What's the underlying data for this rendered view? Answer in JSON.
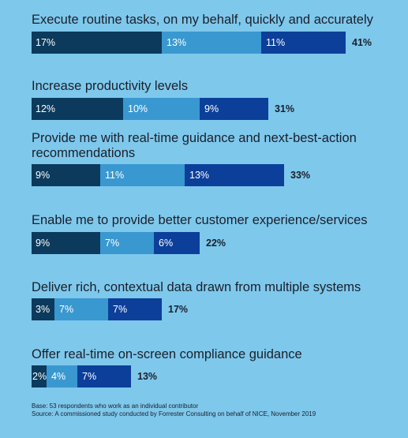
{
  "chart_data": {
    "type": "bar",
    "orientation": "horizontal",
    "stacked": true,
    "categories": [
      "Execute routine tasks, on my behalf, quickly and accurately",
      "Increase productivity levels",
      "Provide me with real-time guidance and next-best-action recommendations",
      "Enable me to provide better customer experience/services",
      "Deliver rich, contextual data drawn from multiple systems",
      "Offer real-time on-screen compliance guidance"
    ],
    "series": [
      {
        "values": [
          17,
          12,
          9,
          9,
          3,
          2
        ],
        "color": "#0b3a5c"
      },
      {
        "values": [
          13,
          10,
          11,
          7,
          7,
          4
        ],
        "color": "#3a98d0"
      },
      {
        "values": [
          11,
          9,
          13,
          6,
          7,
          7
        ],
        "color": "#0c3f9a"
      }
    ],
    "totals": [
      41,
      31,
      33,
      22,
      17,
      13
    ],
    "value_suffix": "%",
    "xlim": [
      0,
      41
    ],
    "grid": false,
    "legend": "none"
  },
  "footnotes": {
    "base": "Base: 53 respondents who work as an individual contributor",
    "source": "Source: A commissioned study conducted by Forrester Consulting on behalf of NICE, November 2019"
  }
}
